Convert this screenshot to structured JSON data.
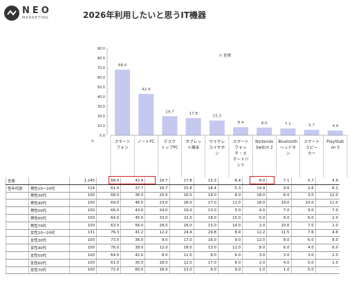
{
  "brand": {
    "name": "NEO",
    "sub": "MARKETING"
  },
  "title": "2026年利用したいと思うIT機器",
  "chart_data": {
    "type": "bar",
    "title": "2026年利用したいと思うIT機器",
    "categories": [
      "スマートフォン",
      "ノートPC",
      "デスクトップPC",
      "タブレット端末",
      "ワイヤレスイヤホン",
      "スマートウォッチ・スマートバンド",
      "Nintendo Switch 2",
      "Bluetoothヘッドホン",
      "スマートスピーカー",
      "PlayStation 5"
    ],
    "category_labels": [
      "スマート\nフォン",
      "ノートPC",
      "デスク\nトップPC",
      "タブレッ\nト端末",
      "ワイヤレ\nスイヤホ\nン",
      "スマート\nウォッ\nチ・ス\nマートバ\nンド",
      "Nintendo\nSwitch 2",
      "Bluetooth\nヘッドホ\nン",
      "スマート\nスピー\nカー",
      "PlayStati\non 5"
    ],
    "series": [
      {
        "name": "全体",
        "values": [
          68.0,
          42.9,
          19.7,
          17.8,
          15.3,
          8.4,
          8.0,
          7.1,
          5.7,
          4.9
        ]
      }
    ],
    "ylim": [
      0,
      90
    ],
    "yticks": [
      "0.0",
      "10.0",
      "20.0",
      "30.0",
      "40.0",
      "50.0",
      "60.0",
      "70.0",
      "80.0",
      "90.0"
    ],
    "legend": "top-right",
    "n_label": "n",
    "bar_color": "#c5c9ef",
    "highlight_color": "#d62020"
  },
  "table": {
    "group_label": "性年代別",
    "rows": [
      {
        "label": "全体",
        "n": "1,245",
        "values": [
          "68.0",
          "42.9",
          "19.7",
          "17.8",
          "15.3",
          "8.4",
          "8.0",
          "7.1",
          "5.7",
          "4.9"
        ]
      },
      {
        "label": "男性10～20代",
        "n": "114",
        "values": [
          "61.4",
          "37.7",
          "16.7",
          "15.8",
          "18.4",
          "5.3",
          "14.9",
          "9.6",
          "2.6",
          "6.1"
        ]
      },
      {
        "label": "男性30代",
        "n": "100",
        "values": [
          "68.0",
          "36.0",
          "25.0",
          "16.0",
          "18.0",
          "8.0",
          "18.0",
          "6.0",
          "3.0",
          "12.0"
        ]
      },
      {
        "label": "男性40代",
        "n": "100",
        "values": [
          "69.0",
          "46.0",
          "23.0",
          "26.0",
          "17.0",
          "11.0",
          "18.0",
          "14.0",
          "10.0",
          "11.0"
        ]
      },
      {
        "label": "男性50代",
        "n": "100",
        "values": [
          "66.0",
          "43.0",
          "34.0",
          "19.0",
          "13.0",
          "5.0",
          "4.0",
          "7.0",
          "9.0",
          "7.0"
        ]
      },
      {
        "label": "男性60代",
        "n": "100",
        "values": [
          "64.0",
          "45.0",
          "33.0",
          "22.0",
          "18.0",
          "15.0",
          "5.0",
          "9.0",
          "6.0",
          "2.0"
        ]
      },
      {
        "label": "男性70代",
        "n": "100",
        "values": [
          "63.0",
          "56.0",
          "28.0",
          "16.0",
          "15.0",
          "14.0",
          "2.0",
          "10.0",
          "7.0",
          "1.0"
        ]
      },
      {
        "label": "女性10～20代",
        "n": "131",
        "values": [
          "76.3",
          "41.2",
          "12.2",
          "24.4",
          "29.8",
          "8.4",
          "12.2",
          "11.5",
          "7.6",
          "4.6"
        ]
      },
      {
        "label": "女性30代",
        "n": "100",
        "values": [
          "73.0",
          "36.0",
          "9.0",
          "17.0",
          "16.0",
          "9.0",
          "12.0",
          "8.0",
          "6.0",
          "8.0"
        ]
      },
      {
        "label": "女性40代",
        "n": "100",
        "values": [
          "76.0",
          "38.0",
          "12.0",
          "18.0",
          "13.0",
          "11.0",
          "8.0",
          "6.0",
          "4.0",
          "6.0"
        ]
      },
      {
        "label": "女性50代",
        "n": "100",
        "values": [
          "64.0",
          "42.0",
          "8.0",
          "11.0",
          "8.0",
          "6.0",
          "3.0",
          "3.0",
          "3.0",
          "2.0"
        ]
      },
      {
        "label": "女性60代",
        "n": "100",
        "values": [
          "61.0",
          "35.0",
          "18.0",
          "12.0",
          "17.0",
          "6.0",
          "2.0",
          "4.0",
          "5.0",
          "1.0"
        ]
      },
      {
        "label": "女性70代",
        "n": "100",
        "values": [
          "72.0",
          "60.0",
          "16.0",
          "13.0",
          "6.0",
          "9.0",
          "1.0",
          "1.0",
          "5.0",
          "-"
        ]
      }
    ]
  }
}
